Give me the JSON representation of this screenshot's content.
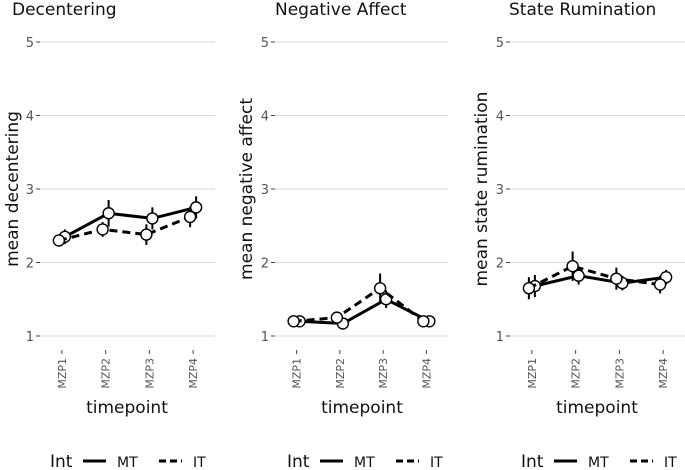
{
  "legend": {
    "title": "Int",
    "entries": [
      {
        "label": "MT",
        "style": "solid"
      },
      {
        "label": "IT",
        "style": "dashed"
      }
    ]
  },
  "colors": {
    "grid": "#d9d9d9",
    "line": "#000000",
    "marker_fill": "#ffffff",
    "text": "#111111",
    "tick_text": "#555555"
  },
  "chart_data": [
    {
      "type": "line",
      "title": "Decentering",
      "xlabel": "timepoint",
      "ylabel": "mean decentering",
      "categories": [
        "MZP1",
        "MZP2",
        "MZP3",
        "MZP4"
      ],
      "ylim": [
        1,
        5
      ],
      "yticks": [
        "1",
        "2",
        "3",
        "4",
        "5"
      ],
      "grid": true,
      "series": [
        {
          "name": "MT",
          "values": [
            2.35,
            2.67,
            2.6,
            2.75
          ],
          "err": [
            0.1,
            0.18,
            0.15,
            0.15
          ]
        },
        {
          "name": "IT",
          "values": [
            2.3,
            2.45,
            2.38,
            2.62
          ],
          "err": [
            0.08,
            0.1,
            0.14,
            0.14
          ]
        }
      ]
    },
    {
      "type": "line",
      "title": "Negative Affect",
      "xlabel": "timepoint",
      "ylabel": "mean negative affect",
      "categories": [
        "MZP1",
        "MZP2",
        "MZP3",
        "MZP4"
      ],
      "ylim": [
        1,
        5
      ],
      "yticks": [
        "1",
        "2",
        "3",
        "4",
        "5"
      ],
      "grid": true,
      "series": [
        {
          "name": "MT",
          "values": [
            1.2,
            1.17,
            1.5,
            1.2
          ],
          "err": [
            0.06,
            0.06,
            0.12,
            0.06
          ]
        },
        {
          "name": "IT",
          "values": [
            1.2,
            1.25,
            1.65,
            1.2
          ],
          "err": [
            0.06,
            0.08,
            0.2,
            0.06
          ]
        }
      ]
    },
    {
      "type": "line",
      "title": "State Rumination",
      "xlabel": "timepoint",
      "ylabel": "mean state rumination",
      "categories": [
        "MZP1",
        "MZP2",
        "MZP3",
        "MZP4"
      ],
      "ylim": [
        1,
        5
      ],
      "yticks": [
        "1",
        "2",
        "3",
        "4",
        "5"
      ],
      "grid": true,
      "series": [
        {
          "name": "MT",
          "values": [
            1.68,
            1.82,
            1.72,
            1.8
          ],
          "err": [
            0.15,
            0.12,
            0.1,
            0.1
          ]
        },
        {
          "name": "IT",
          "values": [
            1.65,
            1.95,
            1.78,
            1.7
          ],
          "err": [
            0.15,
            0.2,
            0.15,
            0.12
          ]
        }
      ]
    }
  ]
}
